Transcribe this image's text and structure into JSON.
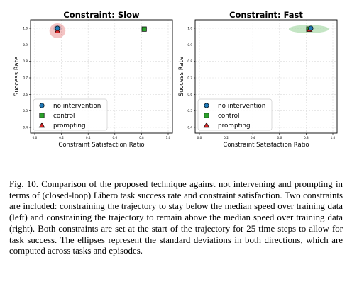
{
  "chart_data": [
    {
      "type": "scatter",
      "title": "Constraint: Slow",
      "xlabel": "Constraint Satisfaction Ratio",
      "ylabel": "Success Rate",
      "xlim": [
        0.0,
        1.0
      ],
      "ylim": [
        0.4,
        1.0
      ],
      "xticks": [
        "0.0",
        "0.2",
        "0.4",
        "0.6",
        "0.8",
        "1.0"
      ],
      "yticks": [
        "0.4",
        "0.5",
        "0.6",
        "0.7",
        "0.8",
        "0.9",
        "1.0"
      ],
      "legend": "lower-left",
      "series": [
        {
          "name": "no intervention",
          "marker": "circle",
          "color": "#1f77b4",
          "x": 0.17,
          "y": 1.0,
          "sd_x": 0.03,
          "sd_y": 0.02
        },
        {
          "name": "control",
          "marker": "square",
          "color": "#2ca02c",
          "x": 0.82,
          "y": 0.995,
          "sd_x": 0.0,
          "sd_y": 0.0
        },
        {
          "name": "prompting",
          "marker": "triangle",
          "color": "#d62728",
          "x": 0.17,
          "y": 0.985,
          "sd_x": 0.06,
          "sd_y": 0.045
        }
      ]
    },
    {
      "type": "scatter",
      "title": "Constraint: Fast",
      "xlabel": "Constraint Satisfaction Ratio",
      "ylabel": "Success Rate",
      "xlim": [
        0.0,
        1.0
      ],
      "ylim": [
        0.4,
        1.0
      ],
      "xticks": [
        "0.0",
        "0.2",
        "0.4",
        "0.6",
        "0.8",
        "1.0"
      ],
      "yticks": [
        "0.4",
        "0.5",
        "0.6",
        "0.7",
        "0.8",
        "0.9",
        "1.0"
      ],
      "legend": "lower-left",
      "series": [
        {
          "name": "no intervention",
          "marker": "circle",
          "color": "#1f77b4",
          "x": 0.835,
          "y": 1.0,
          "sd_x": 0.0,
          "sd_y": 0.0
        },
        {
          "name": "control",
          "marker": "square",
          "color": "#2ca02c",
          "x": 0.82,
          "y": 0.995,
          "sd_x": 0.15,
          "sd_y": 0.025
        },
        {
          "name": "prompting",
          "marker": "triangle",
          "color": "#d62728",
          "x": 0.825,
          "y": 0.993,
          "sd_x": 0.0,
          "sd_y": 0.0
        }
      ]
    }
  ],
  "caption": "Fig. 10.   Comparison of the proposed technique against not intervening and prompting in terms of (closed-loop) Libero task success rate and constraint satisfaction. Two constraints are included: constraining the trajectory to stay below the median speed over training data (left) and constraining the trajectory to remain above the median speed over training data (right). Both constraints are set at the start of the trajectory for 25 time steps to allow for task success. The ellipses represent the standard deviations in both directions, which are computed across tasks and episodes."
}
